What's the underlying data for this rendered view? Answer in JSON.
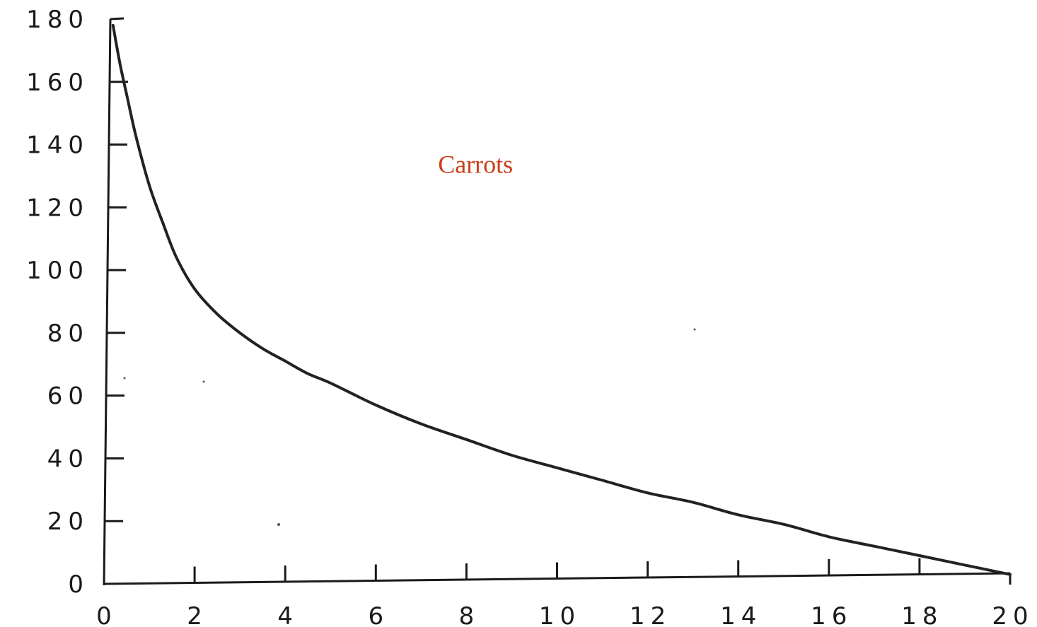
{
  "colors": {
    "axis": "#1a1a1a",
    "curve": "#222222",
    "annotation": "#c8401a"
  },
  "chart_data": {
    "type": "line",
    "title": "",
    "xlabel": "",
    "ylabel": "",
    "xlim": [
      0,
      20
    ],
    "ylim": [
      0,
      180
    ],
    "grid": false,
    "x_ticks": [
      0,
      2,
      4,
      6,
      8,
      10,
      12,
      14,
      16,
      18,
      20
    ],
    "y_ticks": [
      0,
      20,
      40,
      60,
      80,
      100,
      120,
      140,
      160,
      180
    ],
    "annotations": [
      {
        "text": "Carrots",
        "x": 8.2,
        "y": 131
      }
    ],
    "series": [
      {
        "x": [
          0.2,
          0.35,
          0.5,
          0.7,
          1.0,
          1.3,
          1.6,
          2.0,
          2.5,
          3.0,
          3.5,
          4.0,
          4.5,
          5.0,
          6.0,
          7.0,
          8.0,
          9.0,
          10.0,
          11.0,
          12.0,
          13.0,
          14.0,
          15.0,
          16.0,
          17.0,
          18.0,
          19.0,
          20.0
        ],
        "y": [
          178,
          166,
          156,
          143,
          127,
          115,
          104,
          94,
          86,
          80,
          75,
          71,
          67,
          64,
          57,
          51,
          46,
          41,
          37,
          33,
          29,
          26,
          22,
          19,
          15,
          12,
          9,
          6,
          3
        ]
      }
    ]
  }
}
